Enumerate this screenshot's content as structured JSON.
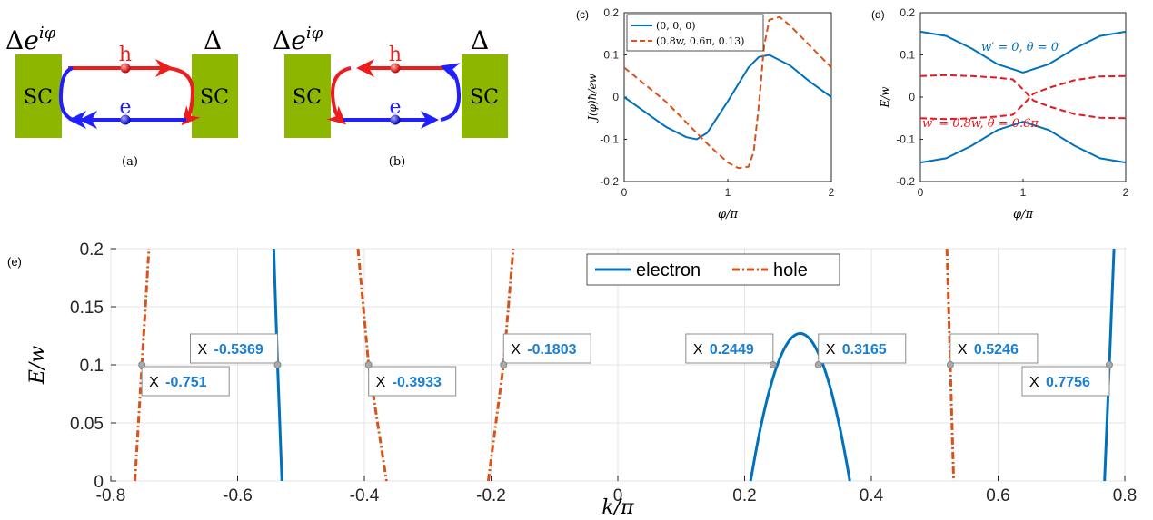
{
  "panel_a": {
    "label": "(a)",
    "left_pair_potential": "Δe^iφ",
    "right_pair_potential": "Δ",
    "left_block": "SC",
    "right_block": "SC",
    "hole_label": "h",
    "electron_label": "e"
  },
  "panel_b": {
    "label": "(b)",
    "left_pair_potential": "Δe^iφ",
    "right_pair_potential": "Δ",
    "left_block": "SC",
    "right_block": "SC",
    "hole_label": "h",
    "electron_label": "e"
  },
  "colors": {
    "sc_block": "#8db600",
    "electron": "#1f1fff",
    "hole": "#ee1c1c",
    "series_blue": "#0072bd",
    "series_orange": "#d95319",
    "series_red": "#e8161d",
    "datatip_value": "#1a7fd4"
  },
  "chart_data": [
    {
      "panel": "(c)",
      "type": "line",
      "xlabel": "φ/π",
      "ylabel": "J(φ)ħ/ew",
      "xlim": [
        0,
        2
      ],
      "ylim": [
        -0.2,
        0.2
      ],
      "xticks": [
        "0",
        "1",
        "2"
      ],
      "yticks": [
        "0.2",
        "0.1",
        "0",
        "-0.1",
        "-0.2"
      ],
      "legend_position": "top-left",
      "series": [
        {
          "name": "(0, 0, 0)",
          "style": "solid",
          "x": [
            0,
            0.2,
            0.4,
            0.6,
            0.7,
            0.8,
            1.0,
            1.2,
            1.3,
            1.4,
            1.6,
            1.8,
            2.0
          ],
          "y": [
            0,
            -0.035,
            -0.07,
            -0.095,
            -0.1,
            -0.085,
            -0.01,
            0.07,
            0.095,
            0.1,
            0.075,
            0.035,
            0
          ]
        },
        {
          "name": "(0.8w, 0.6π, 0.13)",
          "style": "dashed",
          "x": [
            0,
            0.2,
            0.4,
            0.6,
            0.8,
            1.0,
            1.1,
            1.2,
            1.25,
            1.3,
            1.35,
            1.4,
            1.5,
            1.6,
            1.8,
            2.0
          ],
          "y": [
            0.07,
            0.03,
            -0.01,
            -0.06,
            -0.11,
            -0.155,
            -0.168,
            -0.165,
            -0.13,
            -0.02,
            0.12,
            0.183,
            0.19,
            0.17,
            0.12,
            0.07
          ]
        }
      ]
    },
    {
      "panel": "(d)",
      "type": "line",
      "xlabel": "φ/π",
      "ylabel": "E/w",
      "xlim": [
        0,
        2
      ],
      "ylim": [
        -0.2,
        0.2
      ],
      "xticks": [
        "0",
        "1",
        "2"
      ],
      "yticks": [
        "0.2",
        "0.1",
        "0",
        "-0.1",
        "-0.2"
      ],
      "annotations": [
        "w′ = 0, θ = 0",
        "w′ = 0.8w, θ = 0.6π"
      ],
      "series": [
        {
          "name": "w′ = 0, θ = 0",
          "style": "solid",
          "color": "blue",
          "x": [
            0,
            0.25,
            0.5,
            0.75,
            1.0,
            1.25,
            1.5,
            1.75,
            2.0
          ],
          "y_upper": [
            0.155,
            0.145,
            0.115,
            0.078,
            0.058,
            0.078,
            0.115,
            0.145,
            0.155
          ]
        },
        {
          "name": "w′ = 0.8w, θ = 0.6π",
          "style": "dashed",
          "color": "red",
          "x": [
            0,
            0.25,
            0.5,
            0.75,
            0.9,
            1.0,
            1.1,
            1.25,
            1.5,
            1.75,
            2.0
          ],
          "y_a": [
            0.05,
            0.052,
            0.05,
            0.046,
            0.042,
            0.018,
            -0.008,
            -0.022,
            -0.04,
            -0.049,
            -0.05
          ],
          "y_b": [
            -0.05,
            -0.052,
            -0.05,
            -0.046,
            -0.042,
            -0.018,
            0.008,
            0.022,
            0.04,
            0.049,
            0.05
          ]
        }
      ]
    },
    {
      "panel": "(e)",
      "type": "line",
      "xlabel": "k/π",
      "ylabel": "E/w",
      "xlim": [
        -0.8,
        0.8
      ],
      "ylim": [
        0,
        0.2
      ],
      "xticks": [
        "-0.8",
        "-0.6",
        "-0.4",
        "-0.2",
        "0",
        "0.2",
        "0.4",
        "0.6",
        "0.8"
      ],
      "yticks": [
        "0.2",
        "0.15",
        "0.1",
        "0.05",
        "0"
      ],
      "grid": true,
      "legend_position": "top-center",
      "series": [
        {
          "name": "electron",
          "style": "solid"
        },
        {
          "name": "hole",
          "style": "dash-dot"
        }
      ],
      "electron_branches": [
        [
          [
            -0.543,
            0.2
          ],
          [
            -0.5369,
            0.1
          ],
          [
            -0.53,
            0.0
          ]
        ],
        [
          [
            0.2095,
            0.0
          ],
          [
            0.2449,
            0.1
          ],
          [
            0.26,
            0.119
          ],
          [
            0.28,
            0.127
          ],
          [
            0.3,
            0.119
          ],
          [
            0.3165,
            0.1
          ],
          [
            0.345,
            0.05
          ],
          [
            0.366,
            0.0
          ]
        ],
        [
          [
            0.768,
            0.0
          ],
          [
            0.7756,
            0.1
          ],
          [
            0.783,
            0.2
          ]
        ]
      ],
      "hole_branches": [
        [
          [
            -0.762,
            0.0
          ],
          [
            -0.751,
            0.1
          ],
          [
            -0.74,
            0.2
          ]
        ],
        [
          [
            -0.41,
            0.2
          ],
          [
            -0.3933,
            0.1
          ],
          [
            -0.365,
            0.0
          ]
        ],
        [
          [
            -0.2045,
            0.0
          ],
          [
            -0.1803,
            0.1
          ],
          [
            -0.165,
            0.2
          ]
        ],
        [
          [
            0.5193,
            0.2
          ],
          [
            0.5246,
            0.1
          ],
          [
            0.5299,
            0.0
          ]
        ]
      ],
      "datatips": [
        {
          "x": -0.751,
          "y": 0.1,
          "label": "X",
          "value": "-0.751",
          "side": "below-right"
        },
        {
          "x": -0.5369,
          "y": 0.1,
          "label": "X",
          "value": "-0.5369",
          "side": "above-left"
        },
        {
          "x": -0.3933,
          "y": 0.1,
          "label": "X",
          "value": "-0.3933",
          "side": "below-right"
        },
        {
          "x": -0.1803,
          "y": 0.1,
          "label": "X",
          "value": "-0.1803",
          "side": "above-right"
        },
        {
          "x": 0.2449,
          "y": 0.1,
          "label": "X",
          "value": "0.2449",
          "side": "above-left"
        },
        {
          "x": 0.3165,
          "y": 0.1,
          "label": "X",
          "value": "0.3165",
          "side": "above-right"
        },
        {
          "x": 0.5246,
          "y": 0.1,
          "label": "X",
          "value": "0.5246",
          "side": "above-right"
        },
        {
          "x": 0.7756,
          "y": 0.1,
          "label": "X",
          "value": "0.7756",
          "side": "below-left"
        }
      ]
    }
  ]
}
